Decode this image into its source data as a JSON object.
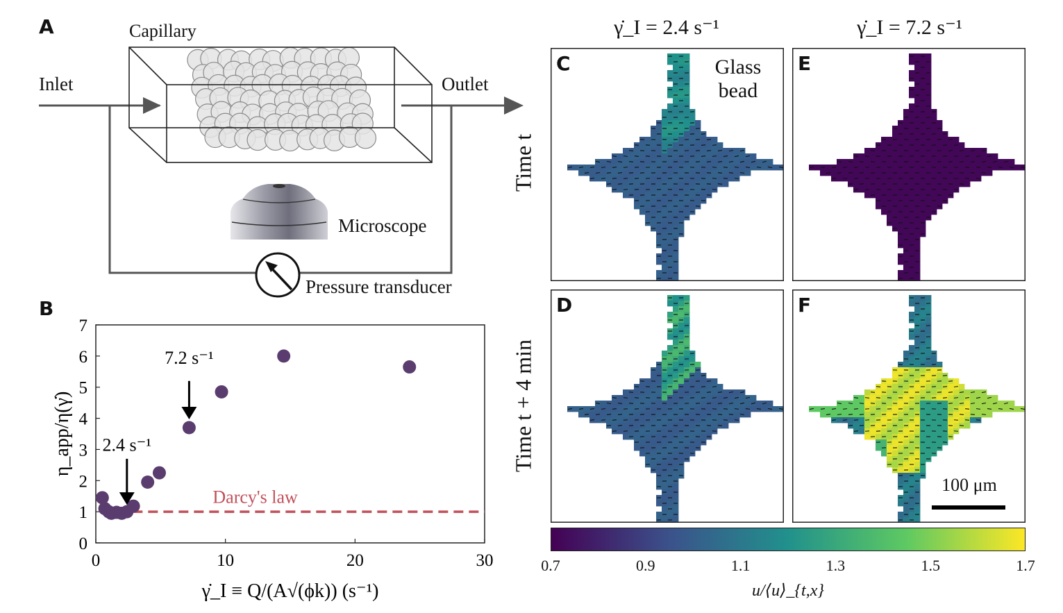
{
  "panels": {
    "a": {
      "letter": "A",
      "capillary": "Capillary",
      "inlet": "Inlet",
      "outlet": "Outlet",
      "microscope": "Microscope",
      "transducer": "Pressure transducer"
    },
    "b": {
      "letter": "B"
    },
    "c": {
      "letter": "C",
      "annotation_line1": "Glass",
      "annotation_line2": "bead"
    },
    "d": {
      "letter": "D"
    },
    "e": {
      "letter": "E"
    },
    "f": {
      "letter": "F",
      "scalebar": "100 μm"
    }
  },
  "column_titles": [
    "γ̇_I = 2.4 s⁻¹",
    "γ̇_I = 7.2 s⁻¹"
  ],
  "row_titles": [
    "Time t",
    "Time t + 4 min"
  ],
  "colorbar": {
    "label": "u/⟨u⟩_{t,x}",
    "ticks": [
      "0.7",
      "0.9",
      "1.1",
      "1.3",
      "1.5",
      "1.7"
    ],
    "min": 0.7,
    "max": 1.7,
    "colors": [
      "#440154",
      "#3b528b",
      "#21918c",
      "#5ec962",
      "#fde725"
    ]
  },
  "chart_data": {
    "type": "scatter",
    "xlabel": "γ̇_I ≡ Q/(A√(ϕk)) (s⁻¹)",
    "ylabel": "η_app/η(γ̇)",
    "xlim": [
      0,
      30
    ],
    "ylim": [
      0,
      7
    ],
    "xticks": [
      0,
      10,
      20,
      30
    ],
    "yticks": [
      0,
      1,
      2,
      3,
      4,
      5,
      6,
      7
    ],
    "points": [
      {
        "x": 0.5,
        "y": 1.45
      },
      {
        "x": 0.7,
        "y": 1.1
      },
      {
        "x": 1.0,
        "y": 1.0
      },
      {
        "x": 1.2,
        "y": 0.95
      },
      {
        "x": 1.6,
        "y": 0.98
      },
      {
        "x": 2.0,
        "y": 0.95
      },
      {
        "x": 2.4,
        "y": 1.0
      },
      {
        "x": 2.9,
        "y": 1.18
      },
      {
        "x": 4.0,
        "y": 1.95
      },
      {
        "x": 4.9,
        "y": 2.25
      },
      {
        "x": 7.2,
        "y": 3.7
      },
      {
        "x": 9.7,
        "y": 4.85
      },
      {
        "x": 14.5,
        "y": 6.0
      },
      {
        "x": 24.2,
        "y": 5.65
      }
    ],
    "marker_color": "#5b3c6e",
    "reference_line": {
      "name": "Darcy's law",
      "y": 1,
      "x0": 0.5,
      "x1": 30,
      "color": "#c0505a"
    },
    "annotations": [
      {
        "text": "7.2 s⁻¹",
        "x": 7.2,
        "y": 3.7
      },
      {
        "text": "2.4 s⁻¹",
        "x": 2.4,
        "y": 1.0
      }
    ]
  }
}
